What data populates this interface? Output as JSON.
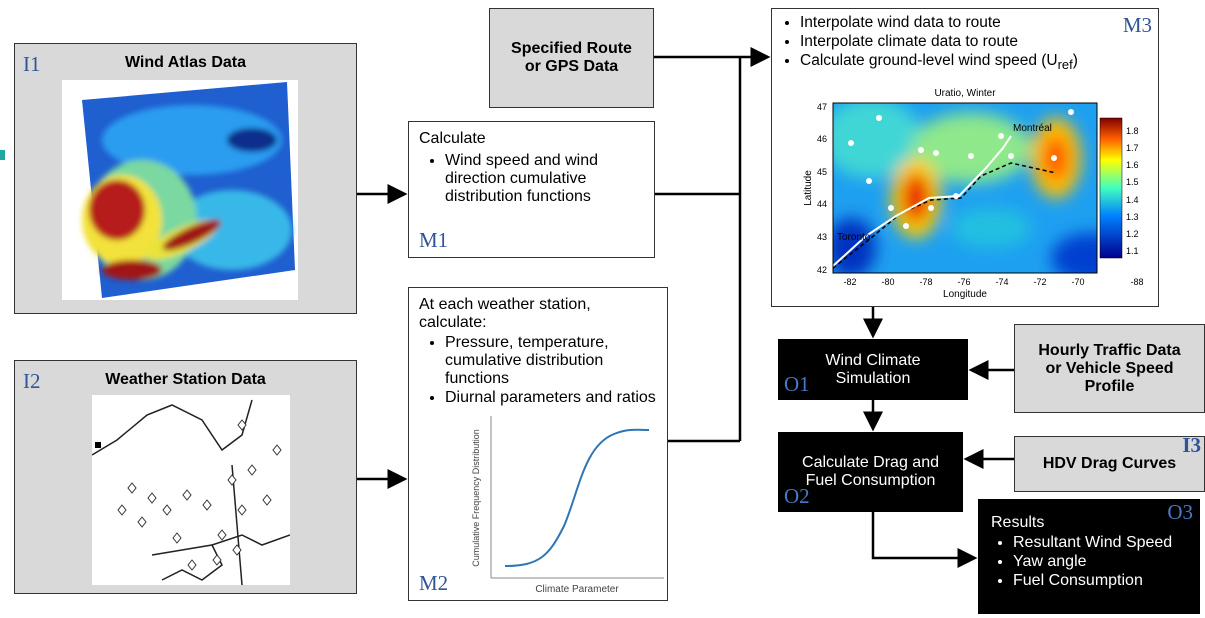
{
  "inputs": [
    {
      "id": "I1",
      "title": "Wind Atlas Data"
    },
    {
      "id": "I2",
      "title": "Weather Station Data"
    },
    {
      "id": "I3",
      "title": "HDV Drag Curves"
    }
  ],
  "route": {
    "lines": [
      "Specified Route",
      "or GPS Data"
    ]
  },
  "traffic": {
    "lines": [
      "Hourly Traffic Data",
      "or Vehicle Speed",
      "Profile"
    ]
  },
  "m1": {
    "id": "M1",
    "heading": "Calculate",
    "bullets": [
      "Wind speed and wind direction cumulative distribution functions"
    ]
  },
  "m2": {
    "id": "M2",
    "heading": "At each weather station, calculate:",
    "bullets": [
      "Pressure, temperature, cumulative distribution functions",
      "Diurnal parameters and ratios"
    ],
    "plot": {
      "y_label": "Cumulative Frequency Distribution",
      "x_label": "Climate Parameter"
    }
  },
  "m3": {
    "id": "M3",
    "bullets": [
      "Interpolate wind data to route",
      "Interpolate climate data to route"
    ],
    "last_bullet": {
      "text": "Calculate ground-level wind speed (U",
      "subscript": "ref",
      "close": ")"
    },
    "map": {
      "title": "Uratio, Winter",
      "y_label": "Latitude",
      "x_label": "Longitude",
      "yticks": [
        "47",
        "46",
        "45",
        "44",
        "43",
        "42"
      ],
      "xticks": [
        "-82",
        "-80",
        "-78",
        "-76",
        "-74",
        "-72",
        "-70",
        "-88"
      ],
      "colorbar_ticks": [
        "1.8",
        "1.7",
        "1.6",
        "1.5",
        "1.4",
        "1.3",
        "1.2",
        "1.1"
      ],
      "cities": [
        "Montréal",
        "Toronto"
      ]
    }
  },
  "o1": {
    "id": "O1",
    "lines": [
      "Wind Climate",
      "Simulation"
    ]
  },
  "o2": {
    "id": "O2",
    "lines": [
      "Calculate Drag and",
      "Fuel Consumption"
    ]
  },
  "o3": {
    "id": "O3",
    "heading": "Results",
    "bullets": [
      "Resultant Wind Speed",
      "Yaw angle",
      "Fuel Consumption"
    ]
  }
}
